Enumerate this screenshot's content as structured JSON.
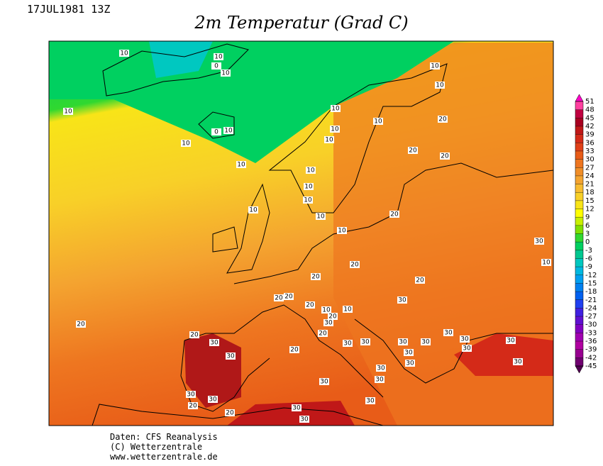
{
  "header": {
    "date": "17JUL1981 13Z",
    "title": "2m Temperatur (Grad C)"
  },
  "colorbar": {
    "ticks": [
      51,
      48,
      45,
      42,
      39,
      36,
      33,
      30,
      27,
      24,
      21,
      18,
      15,
      12,
      9,
      6,
      3,
      0,
      -3,
      -6,
      -9,
      -12,
      -15,
      -18,
      -21,
      -24,
      -27,
      -30,
      -33,
      -36,
      -39,
      -42,
      -45
    ],
    "colors": [
      "#ff00c8",
      "#ff40a0",
      "#c00040",
      "#a80020",
      "#c01818",
      "#d42a18",
      "#e04018",
      "#e85c18",
      "#ee7620",
      "#f08e28",
      "#f4a430",
      "#f8bc30",
      "#f8d028",
      "#f8e418",
      "#ffff00",
      "#c8f000",
      "#80e000",
      "#30d830",
      "#00d060",
      "#00c890",
      "#00c8c0",
      "#00b8e0",
      "#00a0f0",
      "#0080f0",
      "#0060f0",
      "#2040f0",
      "#4020e0",
      "#6010d0",
      "#8000c0",
      "#a000b0",
      "#b000a0",
      "#980090",
      "#700070",
      "#500050"
    ]
  },
  "map": {
    "contour_labels": [
      10,
      10,
      0,
      10,
      10,
      10,
      10,
      10,
      10,
      10,
      0,
      10,
      10,
      20,
      10,
      10,
      20,
      20,
      10,
      10,
      10,
      10,
      10,
      10,
      20,
      30,
      10,
      20,
      20,
      20,
      20,
      20,
      20,
      10,
      20,
      30,
      10,
      30,
      20,
      20,
      30,
      30,
      20,
      30,
      30,
      30,
      30,
      30,
      30,
      30,
      30,
      30,
      30,
      30,
      30,
      30,
      30,
      20,
      30,
      20,
      30,
      20,
      30,
      30,
      30
    ]
  },
  "footer": {
    "lines": [
      "Daten: CFS Reanalysis",
      "(C) Wetterzentrale",
      "www.wetterzentrale.de"
    ]
  }
}
